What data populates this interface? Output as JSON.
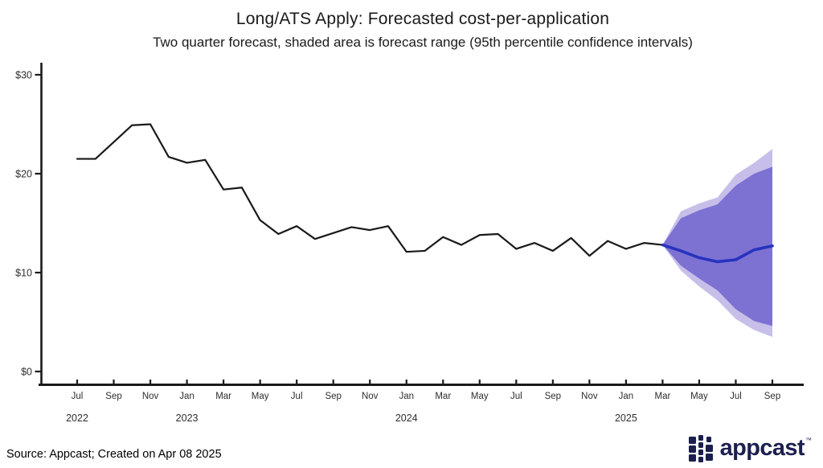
{
  "header": {
    "title": "Long/ATS Apply: Forecasted cost-per-application",
    "subtitle": "Two quarter forecast, shaded area is forecast range (95th percentile confidence intervals)"
  },
  "footer": {
    "source": "Source: Appcast; Created on Apr 08 2025",
    "logo_text": "appcast",
    "logo_tm": "™"
  },
  "chart_data": {
    "type": "line",
    "title": "Long/ATS Apply: Forecasted cost-per-application",
    "subtitle": "Two quarter forecast, shaded area is forecast range (95th percentile confidence intervals)",
    "xlabel": "",
    "ylabel": "",
    "ylim": [
      0,
      31
    ],
    "grid": false,
    "legend": "none",
    "colors": {
      "history_line": "#1a1a1a",
      "forecast_line": "#2733bf",
      "inner_band": "#7d72d2",
      "outer_band": "#c7bfe9",
      "axis": "#1a1a1a",
      "tick_text": "#2e2e2e"
    },
    "y_ticks": [
      {
        "value": 0,
        "label": "$0"
      },
      {
        "value": 10,
        "label": "$10"
      },
      {
        "value": 20,
        "label": "$20"
      },
      {
        "value": 30,
        "label": "$30"
      }
    ],
    "x_ticks": [
      {
        "month_index": 0,
        "label": "Jul"
      },
      {
        "month_index": 2,
        "label": "Sep"
      },
      {
        "month_index": 4,
        "label": "Nov"
      },
      {
        "month_index": 6,
        "label": "Jan"
      },
      {
        "month_index": 8,
        "label": "Mar"
      },
      {
        "month_index": 10,
        "label": "May"
      },
      {
        "month_index": 12,
        "label": "Jul"
      },
      {
        "month_index": 14,
        "label": "Sep"
      },
      {
        "month_index": 16,
        "label": "Nov"
      },
      {
        "month_index": 18,
        "label": "Jan"
      },
      {
        "month_index": 20,
        "label": "Mar"
      },
      {
        "month_index": 22,
        "label": "May"
      },
      {
        "month_index": 24,
        "label": "Jul"
      },
      {
        "month_index": 26,
        "label": "Sep"
      },
      {
        "month_index": 28,
        "label": "Nov"
      },
      {
        "month_index": 30,
        "label": "Jan"
      },
      {
        "month_index": 32,
        "label": "Mar"
      },
      {
        "month_index": 34,
        "label": "May"
      },
      {
        "month_index": 36,
        "label": "Jul"
      },
      {
        "month_index": 38,
        "label": "Sep"
      }
    ],
    "year_labels": [
      {
        "month_index": 0,
        "label": "2022"
      },
      {
        "month_index": 6,
        "label": "2023"
      },
      {
        "month_index": 18,
        "label": "2024"
      },
      {
        "month_index": 30,
        "label": "2025"
      }
    ],
    "historical": {
      "name": "Historical cost-per-application (USD)",
      "x": [
        "2022-07",
        "2022-08",
        "2022-09",
        "2022-10",
        "2022-11",
        "2022-12",
        "2023-01",
        "2023-02",
        "2023-03",
        "2023-04",
        "2023-05",
        "2023-06",
        "2023-07",
        "2023-08",
        "2023-09",
        "2023-10",
        "2023-11",
        "2023-12",
        "2024-01",
        "2024-02",
        "2024-03",
        "2024-04",
        "2024-05",
        "2024-06",
        "2024-07",
        "2024-08",
        "2024-09",
        "2024-10",
        "2024-11",
        "2024-12",
        "2025-01",
        "2025-02",
        "2025-03"
      ],
      "values": [
        21.5,
        21.5,
        23.2,
        24.9,
        25.0,
        21.7,
        21.1,
        21.4,
        18.4,
        18.6,
        15.3,
        13.9,
        14.7,
        13.4,
        14.0,
        14.6,
        14.3,
        14.7,
        12.1,
        12.2,
        13.6,
        12.8,
        13.8,
        13.9,
        12.4,
        13.0,
        12.2,
        13.5,
        11.7,
        13.2,
        12.4,
        13.0,
        12.8
      ]
    },
    "forecast": {
      "name": "Forecast cost-per-application (USD)",
      "x": [
        "2025-03",
        "2025-04",
        "2025-05",
        "2025-06",
        "2025-07",
        "2025-08",
        "2025-09"
      ],
      "center": [
        12.8,
        12.2,
        11.5,
        11.1,
        11.3,
        12.3,
        12.7
      ],
      "inner_band_upper": [
        12.8,
        15.5,
        16.3,
        16.9,
        18.8,
        20.0,
        20.7
      ],
      "inner_band_lower": [
        12.8,
        10.7,
        9.4,
        8.2,
        6.3,
        5.1,
        4.6
      ],
      "outer_band_upper": [
        12.8,
        16.2,
        17.0,
        17.6,
        19.9,
        21.1,
        22.5
      ],
      "outer_band_lower": [
        12.8,
        10.2,
        8.6,
        7.2,
        5.3,
        4.2,
        3.5
      ]
    }
  }
}
